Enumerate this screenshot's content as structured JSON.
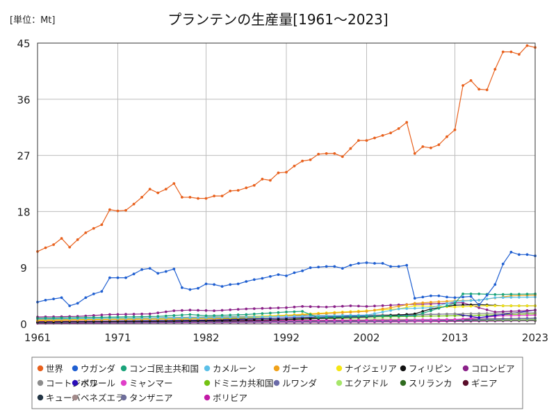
{
  "header": {
    "unit": "[単位：Mt]",
    "title": "プランテンの生産量[1961～2023]"
  },
  "chart_data": {
    "type": "line",
    "title": "プランテンの生産量[1961～2023]",
    "unit": "[単位：Mt]",
    "xlim": [
      1961,
      2023
    ],
    "ylim": [
      0,
      45
    ],
    "x_ticks": [
      1961,
      1971,
      1982,
      1992,
      2002,
      2013,
      2023
    ],
    "y_ticks": [
      0,
      9,
      18,
      27,
      36,
      45
    ],
    "grid": true,
    "legend_position": "bottom",
    "series": [
      {
        "name": "世界",
        "color": "#e8601c",
        "anchors": [
          [
            1961,
            11.6
          ],
          [
            1962,
            12.2
          ],
          [
            1963,
            12.7
          ],
          [
            1964,
            13.7
          ],
          [
            1965,
            12.3
          ],
          [
            1966,
            13.5
          ],
          [
            1967,
            14.6
          ],
          [
            1968,
            15.3
          ],
          [
            1969,
            15.9
          ],
          [
            1970,
            18.3
          ],
          [
            1971,
            18.1
          ],
          [
            1972,
            18.2
          ],
          [
            1973,
            19.2
          ],
          [
            1974,
            20.3
          ],
          [
            1975,
            21.6
          ],
          [
            1976,
            21.0
          ],
          [
            1977,
            21.6
          ],
          [
            1978,
            22.5
          ],
          [
            1979,
            20.3
          ],
          [
            1980,
            20.3
          ],
          [
            1981,
            20.1
          ],
          [
            1982,
            20.1
          ],
          [
            1983,
            20.5
          ],
          [
            1984,
            20.5
          ],
          [
            1985,
            21.3
          ],
          [
            1986,
            21.4
          ],
          [
            1987,
            21.8
          ],
          [
            1988,
            22.2
          ],
          [
            1989,
            23.2
          ],
          [
            1990,
            23.0
          ],
          [
            1991,
            24.2
          ],
          [
            1992,
            24.3
          ],
          [
            1993,
            25.3
          ],
          [
            1994,
            26.1
          ],
          [
            1995,
            26.3
          ],
          [
            1996,
            27.2
          ],
          [
            1997,
            27.3
          ],
          [
            1998,
            27.3
          ],
          [
            1999,
            26.8
          ],
          [
            2000,
            28.1
          ],
          [
            2001,
            29.4
          ],
          [
            2002,
            29.4
          ],
          [
            2003,
            29.8
          ],
          [
            2004,
            30.2
          ],
          [
            2005,
            30.6
          ],
          [
            2006,
            31.3
          ],
          [
            2007,
            32.3
          ],
          [
            2008,
            27.3
          ],
          [
            2009,
            28.4
          ],
          [
            2010,
            28.2
          ],
          [
            2011,
            28.7
          ],
          [
            2012,
            30.0
          ],
          [
            2013,
            31.1
          ],
          [
            2014,
            38.2
          ],
          [
            2015,
            39.0
          ],
          [
            2016,
            37.6
          ],
          [
            2017,
            37.5
          ],
          [
            2018,
            40.8
          ],
          [
            2019,
            43.6
          ],
          [
            2020,
            43.6
          ],
          [
            2021,
            43.2
          ],
          [
            2022,
            44.6
          ],
          [
            2023,
            44.3
          ]
        ]
      },
      {
        "name": "ウガンダ",
        "color": "#1f5fd1",
        "anchors": [
          [
            1961,
            3.5
          ],
          [
            1962,
            3.8
          ],
          [
            1963,
            4.0
          ],
          [
            1964,
            4.2
          ],
          [
            1965,
            2.9
          ],
          [
            1966,
            3.3
          ],
          [
            1967,
            4.2
          ],
          [
            1968,
            4.8
          ],
          [
            1969,
            5.2
          ],
          [
            1970,
            7.4
          ],
          [
            1971,
            7.4
          ],
          [
            1972,
            7.4
          ],
          [
            1973,
            8.0
          ],
          [
            1974,
            8.7
          ],
          [
            1975,
            8.9
          ],
          [
            1976,
            8.1
          ],
          [
            1977,
            8.4
          ],
          [
            1978,
            8.8
          ],
          [
            1979,
            5.8
          ],
          [
            1980,
            5.5
          ],
          [
            1981,
            5.7
          ],
          [
            1982,
            6.4
          ],
          [
            1983,
            6.3
          ],
          [
            1984,
            6.0
          ],
          [
            1985,
            6.3
          ],
          [
            1986,
            6.4
          ],
          [
            1987,
            6.8
          ],
          [
            1988,
            7.1
          ],
          [
            1989,
            7.3
          ],
          [
            1990,
            7.6
          ],
          [
            1991,
            7.9
          ],
          [
            1992,
            7.7
          ],
          [
            1993,
            8.2
          ],
          [
            1994,
            8.5
          ],
          [
            1995,
            9.0
          ],
          [
            1996,
            9.1
          ],
          [
            1997,
            9.2
          ],
          [
            1998,
            9.2
          ],
          [
            1999,
            8.9
          ],
          [
            2000,
            9.4
          ],
          [
            2001,
            9.7
          ],
          [
            2002,
            9.8
          ],
          [
            2003,
            9.7
          ],
          [
            2004,
            9.7
          ],
          [
            2005,
            9.2
          ],
          [
            2006,
            9.2
          ],
          [
            2007,
            9.4
          ],
          [
            2008,
            4.1
          ],
          [
            2009,
            4.3
          ],
          [
            2010,
            4.5
          ],
          [
            2011,
            4.5
          ],
          [
            2012,
            4.3
          ],
          [
            2013,
            4.2
          ],
          [
            2014,
            4.3
          ],
          [
            2015,
            4.4
          ],
          [
            2016,
            3.0
          ],
          [
            2017,
            4.6
          ],
          [
            2018,
            6.3
          ],
          [
            2019,
            9.6
          ],
          [
            2020,
            11.5
          ],
          [
            2021,
            11.1
          ],
          [
            2022,
            11.1
          ],
          [
            2023,
            10.9
          ]
        ]
      },
      {
        "name": "コンゴ民主共和国",
        "color": "#1aa37a",
        "anchors": [
          [
            1961,
            0.9
          ],
          [
            1966,
            1.0
          ],
          [
            1971,
            1.1
          ],
          [
            1976,
            1.2
          ],
          [
            1980,
            1.5
          ],
          [
            1982,
            1.3
          ],
          [
            1987,
            1.5
          ],
          [
            1992,
            1.9
          ],
          [
            1994,
            2.0
          ],
          [
            1996,
            1.0
          ],
          [
            2002,
            1.2
          ],
          [
            2008,
            1.3
          ],
          [
            2013,
            3.3
          ],
          [
            2014,
            4.8
          ],
          [
            2016,
            4.8
          ],
          [
            2018,
            4.7
          ],
          [
            2023,
            4.8
          ]
        ]
      },
      {
        "name": "カメルーン",
        "color": "#5cc0e8",
        "anchors": [
          [
            1961,
            0.8
          ],
          [
            1971,
            0.9
          ],
          [
            1982,
            1.0
          ],
          [
            1992,
            1.2
          ],
          [
            2002,
            1.4
          ],
          [
            2006,
            2.4
          ],
          [
            2010,
            2.6
          ],
          [
            2013,
            3.6
          ],
          [
            2016,
            3.8
          ],
          [
            2018,
            4.2
          ],
          [
            2023,
            4.3
          ]
        ]
      },
      {
        "name": "ガーナ",
        "color": "#f0a21b",
        "anchors": [
          [
            1961,
            0.5
          ],
          [
            1971,
            0.7
          ],
          [
            1982,
            0.8
          ],
          [
            1987,
            1.0
          ],
          [
            1992,
            1.3
          ],
          [
            1996,
            1.6
          ],
          [
            2002,
            2.0
          ],
          [
            2005,
            2.6
          ],
          [
            2008,
            3.3
          ],
          [
            2013,
            3.7
          ],
          [
            2016,
            3.8
          ],
          [
            2020,
            4.5
          ],
          [
            2023,
            4.6
          ]
        ]
      },
      {
        "name": "ナイジェリア",
        "color": "#f5e614",
        "anchors": [
          [
            1961,
            0.6
          ],
          [
            1971,
            0.8
          ],
          [
            1982,
            0.9
          ],
          [
            1992,
            1.4
          ],
          [
            1996,
            1.7
          ],
          [
            2002,
            2.1
          ],
          [
            2006,
            2.4
          ],
          [
            2008,
            2.9
          ],
          [
            2013,
            2.7
          ],
          [
            2016,
            2.9
          ],
          [
            2023,
            2.9
          ]
        ]
      },
      {
        "name": "フィリピン",
        "color": "#111111",
        "anchors": [
          [
            1961,
            0.3
          ],
          [
            1971,
            0.4
          ],
          [
            1982,
            0.5
          ],
          [
            1992,
            0.7
          ],
          [
            2002,
            1.1
          ],
          [
            2008,
            1.6
          ],
          [
            2010,
            2.4
          ],
          [
            2013,
            3.0
          ],
          [
            2016,
            3.1
          ],
          [
            2019,
            2.9
          ],
          [
            2023,
            2.9
          ]
        ]
      },
      {
        "name": "コロンビア",
        "color": "#8b2289",
        "anchors": [
          [
            1961,
            1.1
          ],
          [
            1966,
            1.2
          ],
          [
            1970,
            1.5
          ],
          [
            1975,
            1.6
          ],
          [
            1978,
            2.1
          ],
          [
            1980,
            2.2
          ],
          [
            1983,
            2.1
          ],
          [
            1987,
            2.4
          ],
          [
            1992,
            2.6
          ],
          [
            1994,
            2.8
          ],
          [
            1997,
            2.7
          ],
          [
            2000,
            2.9
          ],
          [
            2002,
            2.8
          ],
          [
            2007,
            3.1
          ],
          [
            2012,
            3.3
          ],
          [
            2014,
            3.4
          ],
          [
            2016,
            2.6
          ],
          [
            2018,
            1.9
          ],
          [
            2023,
            2.2
          ]
        ]
      },
      {
        "name": "コートジボワール",
        "color": "#8c8c8c",
        "anchors": [
          [
            1961,
            0.7
          ],
          [
            1971,
            0.9
          ],
          [
            1982,
            1.1
          ],
          [
            1992,
            1.3
          ],
          [
            2002,
            1.4
          ],
          [
            2008,
            1.5
          ],
          [
            2013,
            1.6
          ],
          [
            2023,
            1.8
          ]
        ]
      },
      {
        "name": "ペルー",
        "color": "#2a0db8",
        "anchors": [
          [
            1961,
            0.3
          ],
          [
            1982,
            0.6
          ],
          [
            2002,
            1.3
          ],
          [
            2013,
            1.6
          ],
          [
            2016,
            1.0
          ],
          [
            2023,
            2.2
          ]
        ]
      },
      {
        "name": "ミャンマー",
        "color": "#e03ec8",
        "anchors": [
          [
            1961,
            0.4
          ],
          [
            1982,
            0.5
          ],
          [
            2002,
            0.6
          ],
          [
            2013,
            0.7
          ],
          [
            2019,
            1.3
          ],
          [
            2023,
            1.4
          ]
        ]
      },
      {
        "name": "ドミニカ共和国",
        "color": "#74c212",
        "anchors": [
          [
            1961,
            0.6
          ],
          [
            1971,
            0.7
          ],
          [
            1982,
            0.8
          ],
          [
            1992,
            0.9
          ],
          [
            2002,
            1.1
          ],
          [
            2013,
            1.3
          ],
          [
            2023,
            1.6
          ]
        ]
      },
      {
        "name": "ルワンダ",
        "color": "#6a6aa8",
        "anchors": [
          [
            1961,
            0.2
          ],
          [
            1982,
            0.3
          ],
          [
            2002,
            0.4
          ],
          [
            2013,
            0.6
          ],
          [
            2023,
            0.9
          ]
        ]
      },
      {
        "name": "エクアドル",
        "color": "#a6e66a",
        "anchors": [
          [
            1961,
            0.5
          ],
          [
            1971,
            0.8
          ],
          [
            1982,
            1.0
          ],
          [
            1992,
            0.9
          ],
          [
            2002,
            0.8
          ],
          [
            2013,
            0.6
          ],
          [
            2023,
            0.7
          ]
        ]
      },
      {
        "name": "スリランカ",
        "color": "#2f6b1f",
        "anchors": [
          [
            1961,
            0.2
          ],
          [
            1982,
            0.3
          ],
          [
            2002,
            0.4
          ],
          [
            2013,
            0.6
          ],
          [
            2023,
            0.9
          ]
        ]
      },
      {
        "name": "ギニア",
        "color": "#5a0d2a",
        "anchors": [
          [
            1961,
            0.3
          ],
          [
            1982,
            0.4
          ],
          [
            2002,
            0.6
          ],
          [
            2013,
            0.7
          ],
          [
            2023,
            0.9
          ]
        ]
      },
      {
        "name": "キューバ",
        "color": "#233545",
        "anchors": [
          [
            1961,
            0.2
          ],
          [
            1982,
            0.4
          ],
          [
            2002,
            0.6
          ],
          [
            2013,
            0.5
          ],
          [
            2023,
            0.6
          ]
        ]
      },
      {
        "name": "ベネズエラ",
        "color": "#a38b8b",
        "anchors": [
          [
            1961,
            0.3
          ],
          [
            1982,
            0.5
          ],
          [
            2002,
            0.6
          ],
          [
            2013,
            0.5
          ],
          [
            2023,
            0.5
          ]
        ]
      },
      {
        "name": "タンザニア",
        "color": "#6e6e9a",
        "anchors": [
          [
            1961,
            0.3
          ],
          [
            1982,
            0.4
          ],
          [
            2002,
            0.5
          ],
          [
            2013,
            0.6
          ],
          [
            2023,
            0.6
          ]
        ]
      },
      {
        "name": "ボリビア",
        "color": "#c21aa6",
        "anchors": [
          [
            1961,
            0.1
          ],
          [
            1982,
            0.2
          ],
          [
            2002,
            0.3
          ],
          [
            2013,
            0.4
          ],
          [
            2023,
            0.5
          ]
        ]
      }
    ]
  }
}
